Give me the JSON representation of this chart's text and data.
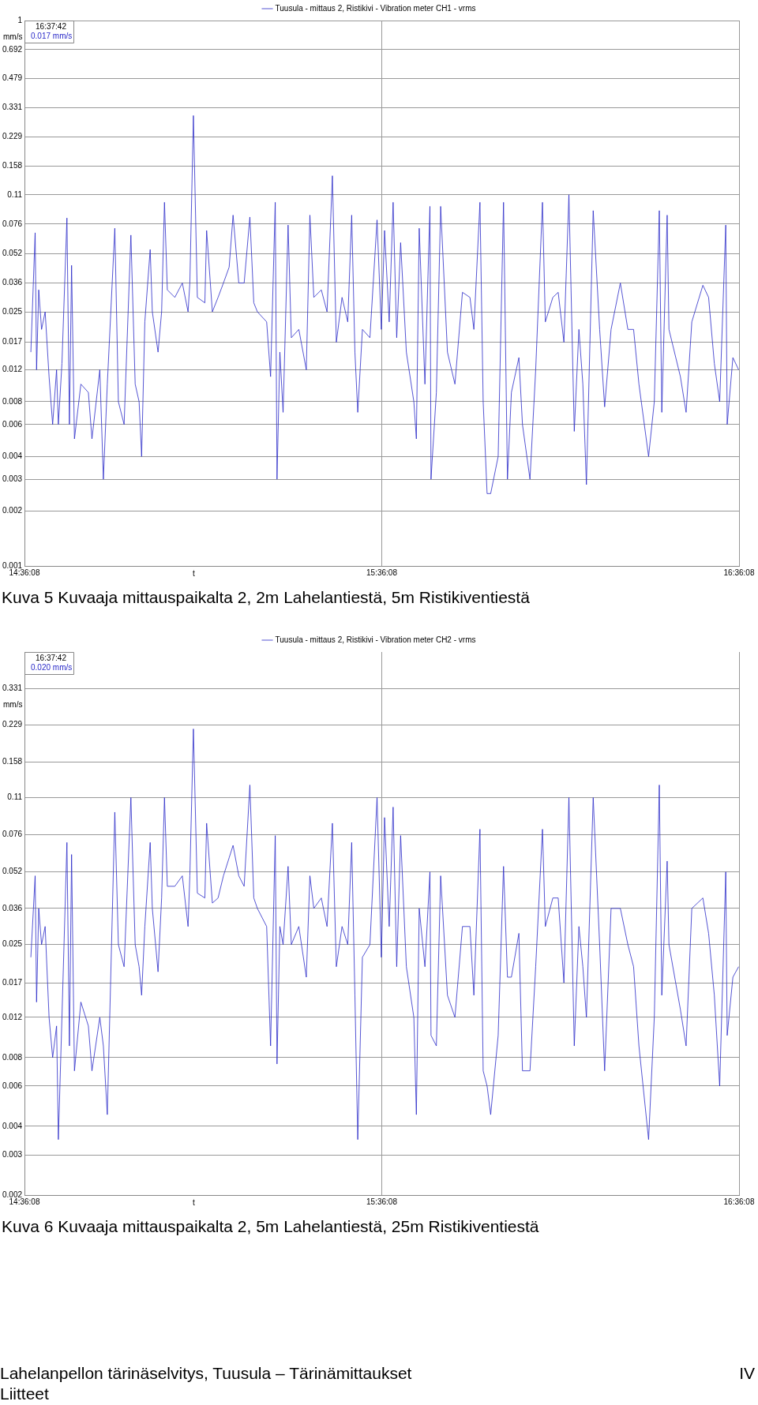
{
  "chart_data": [
    {
      "type": "line",
      "title": "Kuva 5 Kuvaaja mittauspaikalta 2, 2m Lahelantiestä, 5m Ristikiventiestä",
      "xlabel": "t",
      "ylabel": "mm/s",
      "log": true,
      "grid": true,
      "legend": "top",
      "marker": "none",
      "line_style": "solid",
      "annotations": [
        "16:37:42",
        "0.017 mm/s"
      ],
      "xlim": [
        14.6022,
        16.6022
      ],
      "xticks": [
        {
          "value": 14.6022,
          "label": "14:36:08"
        },
        {
          "value": 15.6022,
          "label": "15:36:08"
        },
        {
          "value": 16.6022,
          "label": "16:36:08"
        }
      ],
      "ylim": [
        0.001,
        1
      ],
      "yticks": [
        0.001,
        0.002,
        0.003,
        0.004,
        0.006,
        0.008,
        0.012,
        0.017,
        0.025,
        0.036,
        0.052,
        0.076,
        0.11,
        0.158,
        0.229,
        0.331,
        0.479,
        0.692,
        1
      ],
      "x": [
        14.62,
        14.632,
        14.636,
        14.642,
        14.65,
        14.66,
        14.671,
        14.681,
        14.692,
        14.697,
        14.707,
        14.721,
        14.728,
        14.734,
        14.742,
        14.76,
        14.781,
        14.791,
        14.813,
        14.823,
        14.834,
        14.855,
        14.865,
        14.881,
        14.9,
        14.912,
        14.923,
        14.93,
        14.939,
        14.954,
        14.96,
        14.976,
        14.986,
        14.994,
        15.002,
        15.023,
        15.044,
        15.06,
        15.065,
        15.075,
        15.086,
        15.107,
        15.112,
        15.128,
        15.144,
        15.159,
        15.175,
        15.186,
        15.202,
        15.217,
        15.233,
        15.244,
        15.254,
        15.28,
        15.291,
        15.304,
        15.309,
        15.317,
        15.326,
        15.34,
        15.349,
        15.37,
        15.391,
        15.401,
        15.412,
        15.433,
        15.449,
        15.464,
        15.475,
        15.491,
        15.507,
        15.518,
        15.527,
        15.535,
        15.548,
        15.569,
        15.589,
        15.601,
        15.61,
        15.623,
        15.634,
        15.644,
        15.655,
        15.671,
        15.692,
        15.699,
        15.707,
        15.723,
        15.737,
        15.74,
        15.755,
        15.767,
        15.786,
        15.807,
        15.828,
        15.849,
        15.86,
        15.877,
        15.886,
        15.897,
        15.907,
        15.928,
        15.943,
        15.954,
        15.965,
        15.986,
        15.996,
        16.017,
        16.033,
        16.052,
        16.06,
        16.081,
        16.096,
        16.112,
        16.126,
        16.141,
        16.154,
        16.165,
        16.175,
        16.194,
        16.212,
        16.226,
        16.244,
        16.27,
        16.291,
        16.307,
        16.322,
        16.349,
        16.365,
        16.379,
        16.386,
        16.401,
        16.406,
        16.438,
        16.454,
        16.47,
        16.501,
        16.517,
        16.533,
        16.548,
        16.565,
        16.569,
        16.585,
        16.601
      ],
      "series": [
        {
          "name": "Tuusula - mittaus 2, Ristikivi - Vibration meter CH1 - vrms",
          "color": "#2a2ac8",
          "values": [
            0.015,
            0.068,
            0.012,
            0.033,
            0.02,
            0.025,
            0.011,
            0.006,
            0.012,
            0.006,
            0.013,
            0.082,
            0.006,
            0.045,
            0.005,
            0.01,
            0.009,
            0.005,
            0.012,
            0.003,
            0.01,
            0.072,
            0.008,
            0.006,
            0.066,
            0.01,
            0.008,
            0.004,
            0.022,
            0.055,
            0.025,
            0.015,
            0.025,
            0.1,
            0.033,
            0.03,
            0.036,
            0.025,
            0.036,
            0.3,
            0.03,
            0.028,
            0.07,
            0.025,
            0.03,
            0.036,
            0.044,
            0.085,
            0.036,
            0.036,
            0.083,
            0.028,
            0.025,
            0.022,
            0.011,
            0.1,
            0.003,
            0.015,
            0.007,
            0.075,
            0.018,
            0.02,
            0.012,
            0.085,
            0.03,
            0.033,
            0.025,
            0.14,
            0.017,
            0.03,
            0.022,
            0.085,
            0.015,
            0.007,
            0.02,
            0.018,
            0.08,
            0.02,
            0.07,
            0.022,
            0.1,
            0.018,
            0.06,
            0.015,
            0.008,
            0.005,
            0.072,
            0.01,
            0.095,
            0.003,
            0.009,
            0.095,
            0.015,
            0.01,
            0.032,
            0.03,
            0.02,
            0.1,
            0.008,
            0.0025,
            0.0025,
            0.004,
            0.1,
            0.003,
            0.009,
            0.014,
            0.006,
            0.003,
            0.012,
            0.1,
            0.022,
            0.03,
            0.032,
            0.017,
            0.11,
            0.0055,
            0.02,
            0.01,
            0.0028,
            0.09,
            0.02,
            0.0075,
            0.02,
            0.036,
            0.02,
            0.02,
            0.01,
            0.004,
            0.008,
            0.09,
            0.007,
            0.085,
            0.02,
            0.011,
            0.007,
            0.022,
            0.035,
            0.03,
            0.013,
            0.008,
            0.075,
            0.006,
            0.014,
            0.012
          ]
        }
      ]
    },
    {
      "type": "line",
      "title": "Kuva 6 Kuvaaja mittauspaikalta 2, 5m Lahelantiestä, 25m Ristikiventiestä",
      "xlabel": "t",
      "ylabel": "mm/s",
      "log": true,
      "grid": true,
      "legend": "top",
      "marker": "none",
      "line_style": "solid",
      "annotations": [
        "16:37:42",
        "0.020 mm/s",
        "Lahelanpellon tärinäselvitys, Tuusula – Tärinämittaukset",
        "Liitteet",
        "IV"
      ],
      "xlim": [
        14.6022,
        16.6022
      ],
      "xticks": [
        {
          "value": 14.6022,
          "label": "14:36:08"
        },
        {
          "value": 15.6022,
          "label": "15:36:08"
        },
        {
          "value": 16.6022,
          "label": "16:36:08"
        }
      ],
      "ylim": [
        0.002,
        0.478
      ],
      "yticks": [
        0.002,
        0.003,
        0.004,
        0.006,
        0.008,
        0.012,
        0.017,
        0.025,
        0.036,
        0.052,
        0.076,
        0.11,
        0.158,
        0.229,
        0.331
      ],
      "x": [
        14.62,
        14.632,
        14.636,
        14.642,
        14.65,
        14.66,
        14.671,
        14.681,
        14.692,
        14.697,
        14.707,
        14.721,
        14.728,
        14.734,
        14.742,
        14.76,
        14.781,
        14.791,
        14.813,
        14.823,
        14.834,
        14.855,
        14.865,
        14.881,
        14.9,
        14.912,
        14.923,
        14.93,
        14.939,
        14.954,
        14.96,
        14.976,
        14.986,
        14.994,
        15.002,
        15.023,
        15.044,
        15.06,
        15.065,
        15.075,
        15.086,
        15.107,
        15.112,
        15.128,
        15.144,
        15.159,
        15.175,
        15.186,
        15.202,
        15.217,
        15.233,
        15.244,
        15.254,
        15.28,
        15.291,
        15.304,
        15.309,
        15.317,
        15.326,
        15.34,
        15.349,
        15.37,
        15.391,
        15.401,
        15.412,
        15.433,
        15.449,
        15.464,
        15.475,
        15.491,
        15.507,
        15.518,
        15.527,
        15.535,
        15.548,
        15.569,
        15.589,
        15.601,
        15.61,
        15.623,
        15.634,
        15.644,
        15.655,
        15.671,
        15.692,
        15.699,
        15.707,
        15.723,
        15.737,
        15.74,
        15.755,
        15.767,
        15.786,
        15.807,
        15.828,
        15.849,
        15.86,
        15.877,
        15.886,
        15.897,
        15.907,
        15.928,
        15.943,
        15.954,
        15.965,
        15.986,
        15.996,
        16.017,
        16.033,
        16.052,
        16.06,
        16.081,
        16.096,
        16.112,
        16.126,
        16.141,
        16.154,
        16.165,
        16.175,
        16.194,
        16.212,
        16.226,
        16.244,
        16.27,
        16.291,
        16.307,
        16.322,
        16.349,
        16.365,
        16.379,
        16.386,
        16.401,
        16.406,
        16.438,
        16.454,
        16.47,
        16.501,
        16.517,
        16.533,
        16.548,
        16.565,
        16.569,
        16.585,
        16.601
      ],
      "series": [
        {
          "name": "Tuusula - mittaus 2, Ristikivi - Vibration meter CH2 - vrms",
          "color": "#2a2ac8",
          "values": [
            0.022,
            0.05,
            0.014,
            0.036,
            0.025,
            0.03,
            0.012,
            0.008,
            0.011,
            0.0035,
            0.012,
            0.07,
            0.009,
            0.062,
            0.007,
            0.014,
            0.011,
            0.007,
            0.012,
            0.009,
            0.0045,
            0.095,
            0.025,
            0.02,
            0.11,
            0.025,
            0.02,
            0.015,
            0.03,
            0.07,
            0.036,
            0.019,
            0.04,
            0.11,
            0.045,
            0.045,
            0.05,
            0.03,
            0.05,
            0.22,
            0.042,
            0.04,
            0.085,
            0.038,
            0.04,
            0.05,
            0.06,
            0.068,
            0.05,
            0.045,
            0.125,
            0.04,
            0.036,
            0.03,
            0.009,
            0.075,
            0.0075,
            0.03,
            0.025,
            0.055,
            0.025,
            0.03,
            0.018,
            0.05,
            0.036,
            0.04,
            0.03,
            0.085,
            0.02,
            0.03,
            0.025,
            0.07,
            0.015,
            0.0035,
            0.022,
            0.025,
            0.11,
            0.022,
            0.09,
            0.03,
            0.1,
            0.02,
            0.075,
            0.02,
            0.012,
            0.0045,
            0.036,
            0.02,
            0.052,
            0.01,
            0.009,
            0.05,
            0.015,
            0.012,
            0.03,
            0.03,
            0.015,
            0.08,
            0.007,
            0.006,
            0.0045,
            0.01,
            0.055,
            0.018,
            0.018,
            0.028,
            0.007,
            0.007,
            0.02,
            0.08,
            0.03,
            0.04,
            0.04,
            0.017,
            0.11,
            0.009,
            0.03,
            0.02,
            0.012,
            0.11,
            0.025,
            0.007,
            0.036,
            0.036,
            0.025,
            0.02,
            0.009,
            0.0035,
            0.012,
            0.125,
            0.015,
            0.058,
            0.025,
            0.013,
            0.009,
            0.036,
            0.04,
            0.028,
            0.015,
            0.006,
            0.052,
            0.01,
            0.018,
            0.02
          ]
        }
      ]
    }
  ]
}
